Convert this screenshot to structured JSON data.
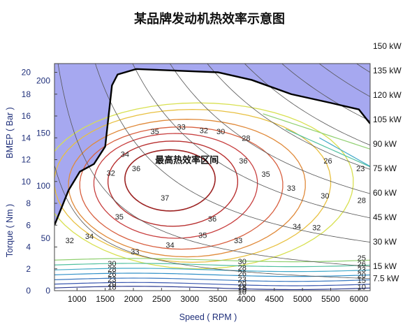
{
  "chart_data": {
    "type": "contour",
    "title": "某品牌发动机热效率示意图",
    "xlabel": "Speed ( RPM )",
    "ylabel_outer": "BMEP ( Bar )",
    "ylabel_inner": "Torque ( Nm )",
    "xlim": [
      600,
      6200
    ],
    "ylim_bmep": [
      0,
      20.8
    ],
    "x_ticks": [
      "1000",
      "1500",
      "2000",
      "2500",
      "3000",
      "3500",
      "4000",
      "4500",
      "5000",
      "5500",
      "6000"
    ],
    "bmep_ticks": [
      "0",
      "2",
      "4",
      "6",
      "8",
      "10",
      "12",
      "14",
      "16",
      "18",
      "20"
    ],
    "torque_ticks": [
      "0",
      "50",
      "100",
      "150",
      "200"
    ],
    "power_lines": [
      {
        "label": "7.5 kW",
        "kw": 7.5
      },
      {
        "label": "15 kW",
        "kw": 15
      },
      {
        "label": "30 kW",
        "kw": 30
      },
      {
        "label": "45 kW",
        "kw": 45
      },
      {
        "label": "60 kW",
        "kw": 60
      },
      {
        "label": "75 kW",
        "kw": 75
      },
      {
        "label": "90 kW",
        "kw": 90
      },
      {
        "label": "105 kW",
        "kw": 105
      },
      {
        "label": "120 kW",
        "kw": 120
      },
      {
        "label": "135 kW",
        "kw": 135
      },
      {
        "label": "150 kW",
        "kw": 150
      }
    ],
    "efficiency_levels": [
      37,
      36,
      35,
      34,
      33,
      32,
      30,
      28,
      26,
      25,
      23,
      20,
      18,
      15,
      10
    ],
    "contour_labels": [
      {
        "text": "37",
        "rpm": 2560,
        "bmep": 8.5
      },
      {
        "text": "36",
        "rpm": 2050,
        "bmep": 11.2
      },
      {
        "text": "36",
        "rpm": 3400,
        "bmep": 6.6
      },
      {
        "text": "36",
        "rpm": 3950,
        "bmep": 11.9
      },
      {
        "text": "35",
        "rpm": 2380,
        "bmep": 14.6
      },
      {
        "text": "35",
        "rpm": 1750,
        "bmep": 6.8
      },
      {
        "text": "35",
        "rpm": 3230,
        "bmep": 5.1
      },
      {
        "text": "35",
        "rpm": 4350,
        "bmep": 10.7
      },
      {
        "text": "34",
        "rpm": 1850,
        "bmep": 12.5
      },
      {
        "text": "34",
        "rpm": 1220,
        "bmep": 5.0
      },
      {
        "text": "34",
        "rpm": 2650,
        "bmep": 4.2
      },
      {
        "text": "34",
        "rpm": 4900,
        "bmep": 5.9
      },
      {
        "text": "33",
        "rpm": 2850,
        "bmep": 15.0
      },
      {
        "text": "33",
        "rpm": 4800,
        "bmep": 9.4
      },
      {
        "text": "33",
        "rpm": 2030,
        "bmep": 3.6
      },
      {
        "text": "33",
        "rpm": 3860,
        "bmep": 4.6
      },
      {
        "text": "32",
        "rpm": 3250,
        "bmep": 14.7
      },
      {
        "text": "32",
        "rpm": 1600,
        "bmep": 10.8
      },
      {
        "text": "32",
        "rpm": 870,
        "bmep": 4.6
      },
      {
        "text": "32",
        "rpm": 5250,
        "bmep": 5.8
      },
      {
        "text": "30",
        "rpm": 3550,
        "bmep": 14.6
      },
      {
        "text": "30",
        "rpm": 5400,
        "bmep": 8.7
      },
      {
        "text": "30",
        "rpm": 1620,
        "bmep": 2.5
      },
      {
        "text": "30",
        "rpm": 3930,
        "bmep": 2.7
      },
      {
        "text": "28",
        "rpm": 4000,
        "bmep": 14.0
      },
      {
        "text": "28",
        "rpm": 1620,
        "bmep": 2.0
      },
      {
        "text": "28",
        "rpm": 3930,
        "bmep": 2.1
      },
      {
        "text": "28",
        "rpm": 6050,
        "bmep": 8.3
      },
      {
        "text": "26",
        "rpm": 5450,
        "bmep": 11.9
      },
      {
        "text": "26",
        "rpm": 1620,
        "bmep": 1.55
      },
      {
        "text": "26",
        "rpm": 3930,
        "bmep": 1.6
      },
      {
        "text": "25",
        "rpm": 6050,
        "bmep": 3.0
      },
      {
        "text": "26",
        "rpm": 6050,
        "bmep": 2.45
      },
      {
        "text": "23",
        "rpm": 6030,
        "bmep": 11.2
      },
      {
        "text": "23",
        "rpm": 1620,
        "bmep": 1.05
      },
      {
        "text": "23",
        "rpm": 3930,
        "bmep": 1.05
      },
      {
        "text": "23",
        "rpm": 6050,
        "bmep": 1.95
      },
      {
        "text": "20",
        "rpm": 1620,
        "bmep": 0.65
      },
      {
        "text": "20",
        "rpm": 3930,
        "bmep": 0.65
      },
      {
        "text": "20",
        "rpm": 6050,
        "bmep": 1.45
      },
      {
        "text": "18",
        "rpm": 1620,
        "bmep": 0.35
      },
      {
        "text": "18",
        "rpm": 3930,
        "bmep": 0.35
      },
      {
        "text": "15",
        "rpm": 6050,
        "bmep": 0.95
      },
      {
        "text": "15",
        "rpm": 3930,
        "bmep": 0.1
      },
      {
        "text": "10",
        "rpm": 6050,
        "bmep": 0.35
      },
      {
        "text": "10",
        "rpm": 3930,
        "bmep": -0.1
      }
    ],
    "annotation": {
      "text": "最高热效率区间",
      "rpm": 2950,
      "bmep": 12.0
    },
    "colors": {
      "over_limit_fill": "#a6a8f0",
      "max_torque_line": "#000000",
      "power_line": "#555555",
      "contour_37": "#9c2222",
      "contour_36": "#b83030",
      "contour_35": "#c84040",
      "contour_34": "#d86040",
      "contour_33": "#e08a3a",
      "contour_32": "#e8c040",
      "contour_30": "#d8e050",
      "contour_28": "#90d070",
      "contour_26": "#50c0a0",
      "contour_23": "#40a8c8",
      "contour_20": "#3090c8",
      "contour_18": "#3a78c0",
      "contour_15": "#3a58b0",
      "contour_10": "#2c3a90"
    }
  }
}
